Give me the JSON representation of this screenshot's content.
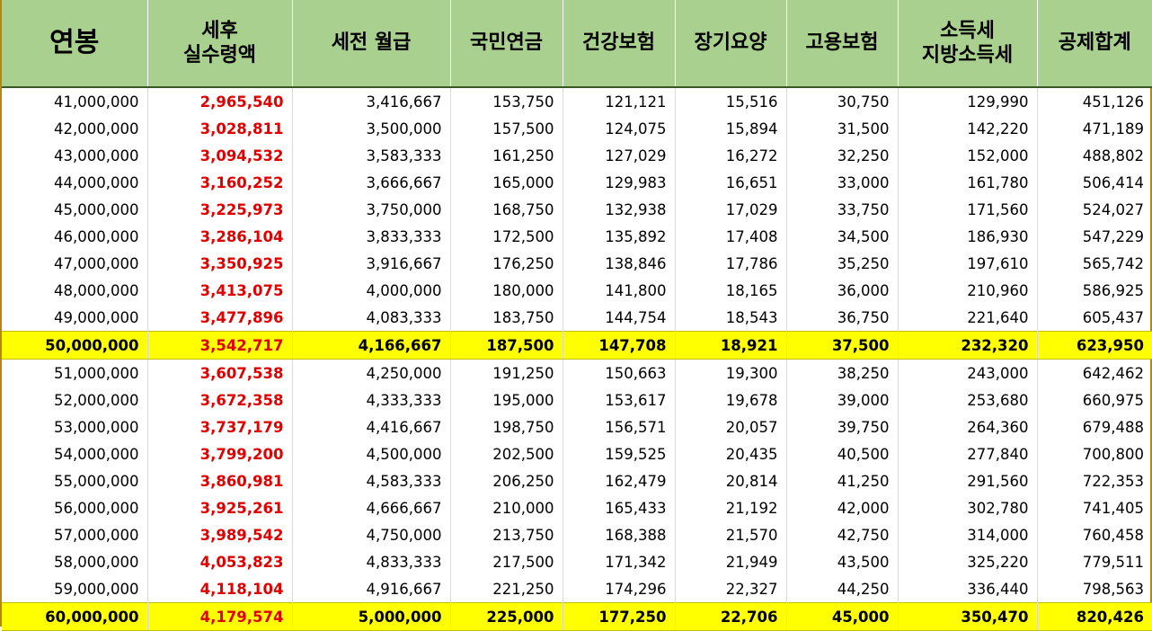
{
  "headers": [
    {
      "lines": [
        "연봉"
      ]
    },
    {
      "lines": [
        "세후",
        "실수령액"
      ]
    },
    {
      "lines": [
        "세전 월급"
      ]
    },
    {
      "lines": [
        "국민연금"
      ]
    },
    {
      "lines": [
        "건강보험"
      ]
    },
    {
      "lines": [
        "장기요양"
      ]
    },
    {
      "lines": [
        "고용보험"
      ]
    },
    {
      "lines": [
        "소득세",
        "지방소득세"
      ]
    },
    {
      "lines": [
        "공제합계"
      ]
    }
  ],
  "colors": {
    "header_bg": "#a9d08e",
    "highlight_bg": "#ffff00",
    "net_text": "#e00000"
  },
  "rows": [
    {
      "highlight": false,
      "cells": [
        "41,000,000",
        "2,965,540",
        "3,416,667",
        "153,750",
        "121,121",
        "15,516",
        "30,750",
        "129,990",
        "451,126"
      ]
    },
    {
      "highlight": false,
      "cells": [
        "42,000,000",
        "3,028,811",
        "3,500,000",
        "157,500",
        "124,075",
        "15,894",
        "31,500",
        "142,220",
        "471,189"
      ]
    },
    {
      "highlight": false,
      "cells": [
        "43,000,000",
        "3,094,532",
        "3,583,333",
        "161,250",
        "127,029",
        "16,272",
        "32,250",
        "152,000",
        "488,802"
      ]
    },
    {
      "highlight": false,
      "cells": [
        "44,000,000",
        "3,160,252",
        "3,666,667",
        "165,000",
        "129,983",
        "16,651",
        "33,000",
        "161,780",
        "506,414"
      ]
    },
    {
      "highlight": false,
      "cells": [
        "45,000,000",
        "3,225,973",
        "3,750,000",
        "168,750",
        "132,938",
        "17,029",
        "33,750",
        "171,560",
        "524,027"
      ]
    },
    {
      "highlight": false,
      "cells": [
        "46,000,000",
        "3,286,104",
        "3,833,333",
        "172,500",
        "135,892",
        "17,408",
        "34,500",
        "186,930",
        "547,229"
      ]
    },
    {
      "highlight": false,
      "cells": [
        "47,000,000",
        "3,350,925",
        "3,916,667",
        "176,250",
        "138,846",
        "17,786",
        "35,250",
        "197,610",
        "565,742"
      ]
    },
    {
      "highlight": false,
      "cells": [
        "48,000,000",
        "3,413,075",
        "4,000,000",
        "180,000",
        "141,800",
        "18,165",
        "36,000",
        "210,960",
        "586,925"
      ]
    },
    {
      "highlight": false,
      "cells": [
        "49,000,000",
        "3,477,896",
        "4,083,333",
        "183,750",
        "144,754",
        "18,543",
        "36,750",
        "221,640",
        "605,437"
      ]
    },
    {
      "highlight": true,
      "cells": [
        "50,000,000",
        "3,542,717",
        "4,166,667",
        "187,500",
        "147,708",
        "18,921",
        "37,500",
        "232,320",
        "623,950"
      ]
    },
    {
      "highlight": false,
      "cells": [
        "51,000,000",
        "3,607,538",
        "4,250,000",
        "191,250",
        "150,663",
        "19,300",
        "38,250",
        "243,000",
        "642,462"
      ]
    },
    {
      "highlight": false,
      "cells": [
        "52,000,000",
        "3,672,358",
        "4,333,333",
        "195,000",
        "153,617",
        "19,678",
        "39,000",
        "253,680",
        "660,975"
      ]
    },
    {
      "highlight": false,
      "cells": [
        "53,000,000",
        "3,737,179",
        "4,416,667",
        "198,750",
        "156,571",
        "20,057",
        "39,750",
        "264,360",
        "679,488"
      ]
    },
    {
      "highlight": false,
      "cells": [
        "54,000,000",
        "3,799,200",
        "4,500,000",
        "202,500",
        "159,525",
        "20,435",
        "40,500",
        "277,840",
        "700,800"
      ]
    },
    {
      "highlight": false,
      "cells": [
        "55,000,000",
        "3,860,981",
        "4,583,333",
        "206,250",
        "162,479",
        "20,814",
        "41,250",
        "291,560",
        "722,353"
      ]
    },
    {
      "highlight": false,
      "cells": [
        "56,000,000",
        "3,925,261",
        "4,666,667",
        "210,000",
        "165,433",
        "21,192",
        "42,000",
        "302,780",
        "741,405"
      ]
    },
    {
      "highlight": false,
      "cells": [
        "57,000,000",
        "3,989,542",
        "4,750,000",
        "213,750",
        "168,388",
        "21,570",
        "42,750",
        "314,000",
        "760,458"
      ]
    },
    {
      "highlight": false,
      "cells": [
        "58,000,000",
        "4,053,823",
        "4,833,333",
        "217,500",
        "171,342",
        "21,949",
        "43,500",
        "325,220",
        "779,511"
      ]
    },
    {
      "highlight": false,
      "cells": [
        "59,000,000",
        "4,118,104",
        "4,916,667",
        "221,250",
        "174,296",
        "22,327",
        "44,250",
        "336,440",
        "798,563"
      ]
    },
    {
      "highlight": true,
      "cells": [
        "60,000,000",
        "4,179,574",
        "5,000,000",
        "225,000",
        "177,250",
        "22,706",
        "45,000",
        "350,470",
        "820,426"
      ]
    }
  ]
}
